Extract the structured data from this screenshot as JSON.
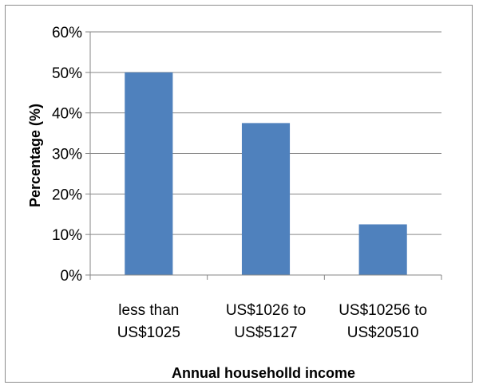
{
  "chart_data": {
    "type": "bar",
    "title": "",
    "xlabel": "Annual househol​ld income",
    "ylabel": "Percentage (%)",
    "categories": [
      [
        "less than",
        "US$1025"
      ],
      [
        "US$1026 to",
        "US$5127"
      ],
      [
        "US$10256 to",
        "US$20510"
      ]
    ],
    "values": [
      50,
      37.5,
      12.5
    ],
    "ylim": [
      0,
      60
    ],
    "yticks": [
      0,
      10,
      20,
      30,
      40,
      50,
      60
    ],
    "ytick_labels": [
      "0%",
      "10%",
      "20%",
      "30%",
      "40%",
      "50%",
      "60%"
    ],
    "grid": true,
    "legend": "none",
    "bar_color": "#4f81bd",
    "grid_color": "#868686"
  }
}
